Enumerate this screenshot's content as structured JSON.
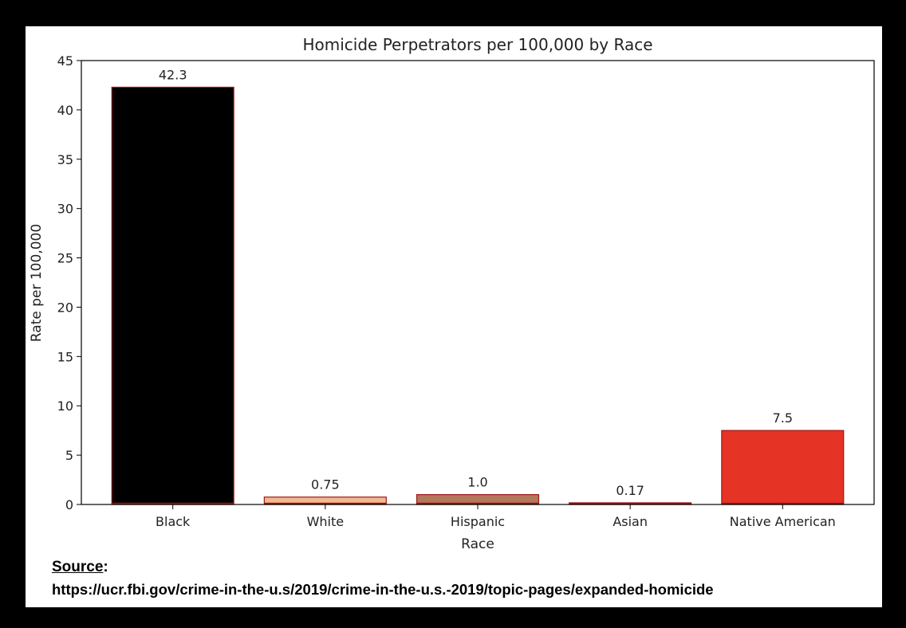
{
  "chart_data": {
    "type": "bar",
    "title": "Homicide Perpetrators per 100,000 by Race",
    "xlabel": "Race",
    "ylabel": "Rate per 100,000",
    "categories": [
      "Black",
      "White",
      "Hispanic",
      "Asian",
      "Native American"
    ],
    "values": [
      42.3,
      0.75,
      1.0,
      0.17,
      7.5
    ],
    "value_labels": [
      "42.3",
      "0.75",
      "1.0",
      "0.17",
      "7.5"
    ],
    "bar_colors": [
      "#000000",
      "#f2ba8f",
      "#b3775a",
      "#f6a94e",
      "#e53325"
    ],
    "edge_color": "#a01818",
    "ylim": [
      0,
      45
    ],
    "yticks": [
      0,
      5,
      10,
      15,
      20,
      25,
      30,
      35,
      40,
      45
    ],
    "grid": false,
    "legend": false
  },
  "source": {
    "label": "Source",
    "colon": ":",
    "url": "https://ucr.fbi.gov/crime-in-the-u.s/2019/crime-in-the-u.s.-2019/topic-pages/expanded-homicide"
  }
}
